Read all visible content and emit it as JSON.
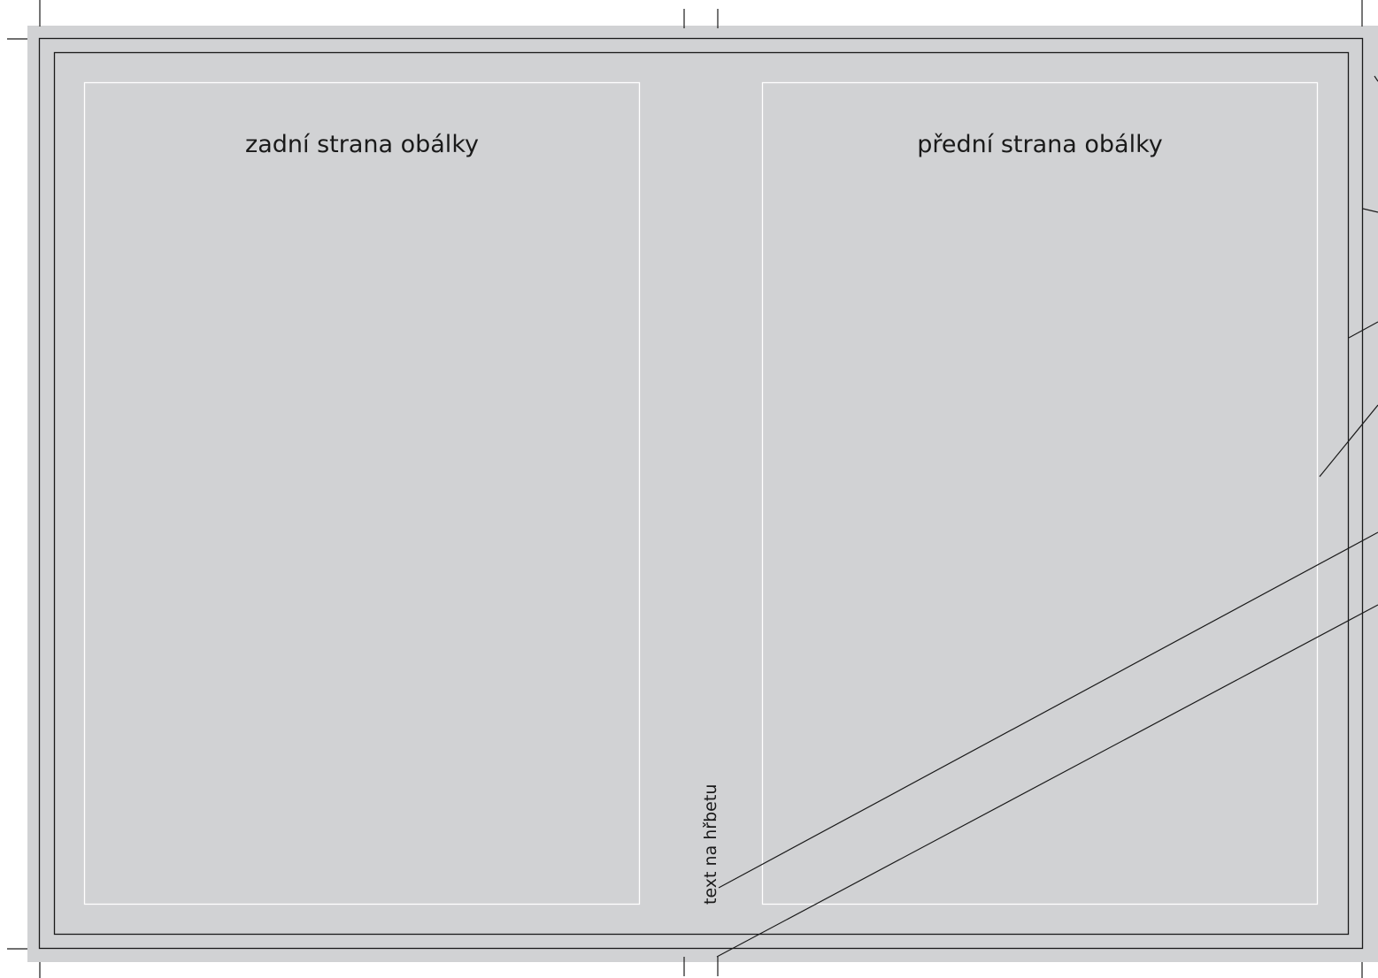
{
  "cover": {
    "back_label": "zadní strana obálky",
    "front_label": "přední strana obálky",
    "spine_label": "text na hřbetu"
  },
  "colors": {
    "background": "#d1d2d4",
    "line": "#1a1a1a",
    "safe_area": "#ffffff"
  }
}
